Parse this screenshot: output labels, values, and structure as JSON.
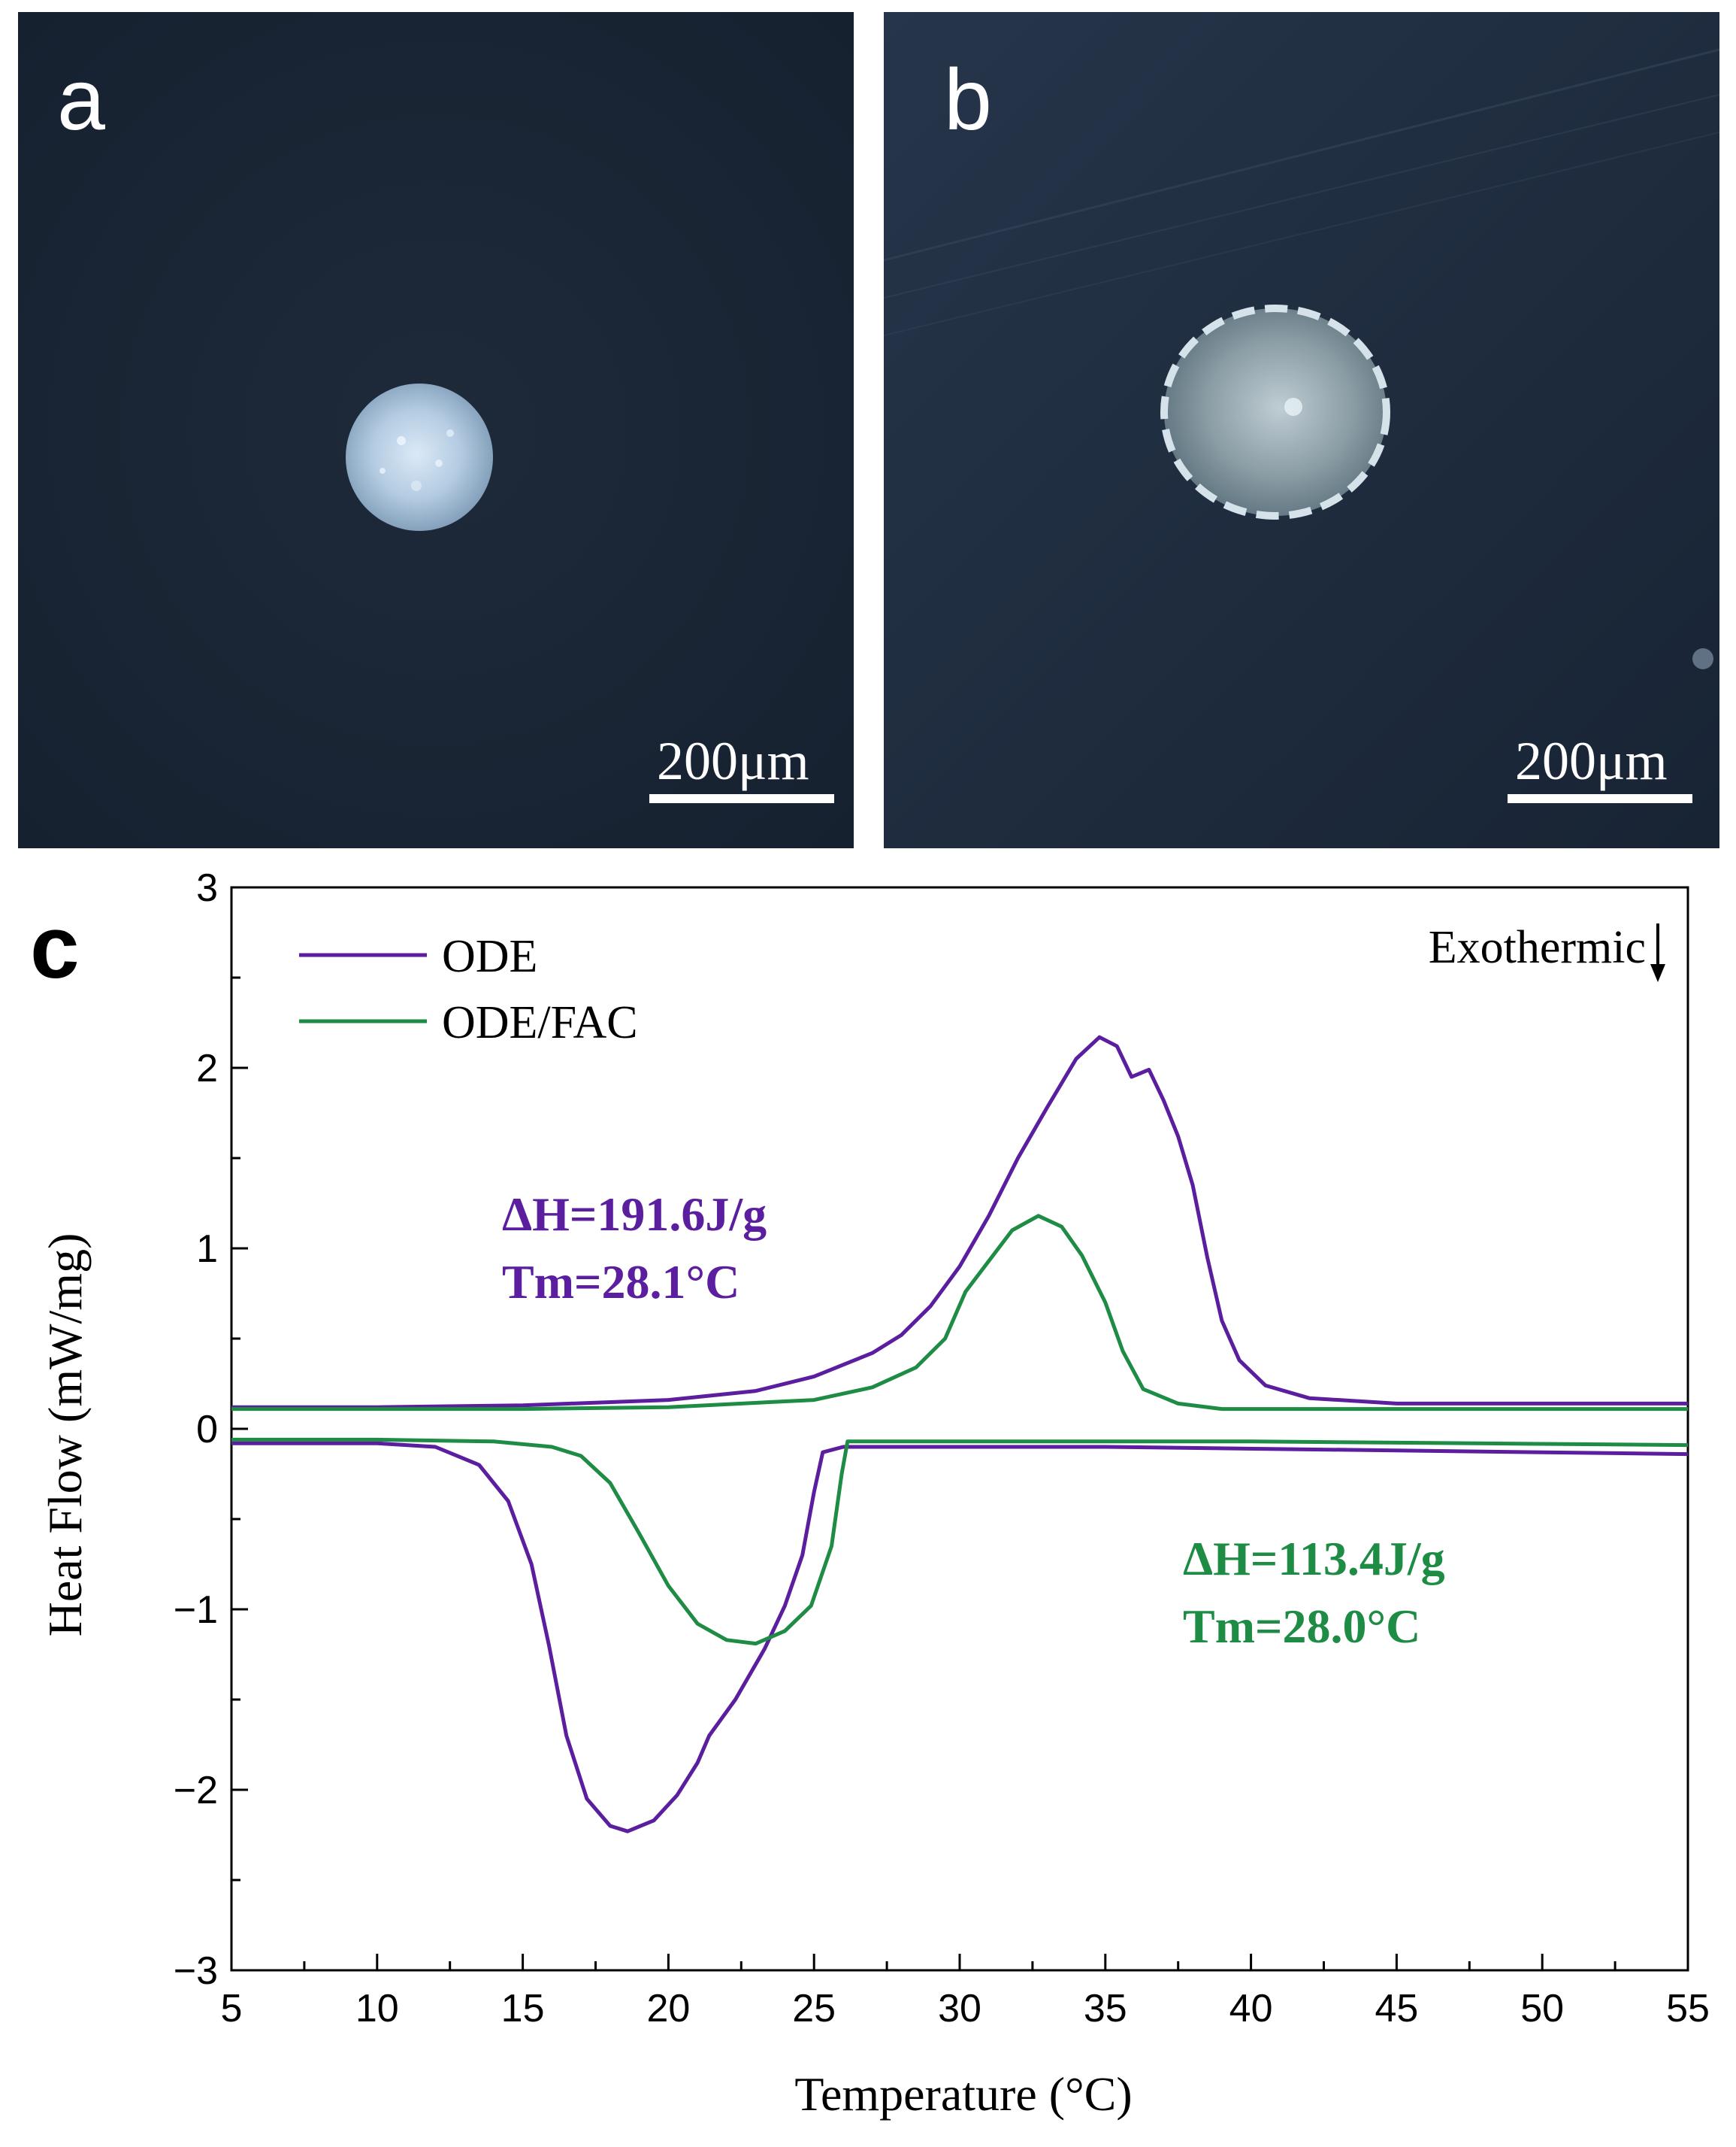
{
  "panel_a": {
    "letter": "a",
    "scale_label": "200μm"
  },
  "panel_b": {
    "letter": "b",
    "scale_label": "200μm"
  },
  "chart_data": {
    "panel_label": "c",
    "type": "line",
    "xlabel": "Temperature (°C)",
    "ylabel": "Heat Flow (mW/mg)",
    "xlim": [
      5,
      55
    ],
    "ylim": [
      -3,
      3
    ],
    "xticks": [
      5,
      10,
      15,
      20,
      25,
      30,
      35,
      40,
      45,
      50,
      55
    ],
    "yticks": [
      3,
      2,
      1,
      0,
      -1,
      -2,
      -3
    ],
    "ytick_labels": [
      "3",
      "2",
      "1",
      "0",
      "−1",
      "−2",
      "−3"
    ],
    "corner_note": "Exothermic",
    "legend": [
      {
        "name": "ODE",
        "color": "#5a1e9e"
      },
      {
        "name": "ODE/FAC",
        "color": "#1f8c45"
      }
    ],
    "annotations": {
      "ode_dh": "ΔH=191.6J/g",
      "ode_tm": "Tm=28.1°C",
      "fac_dh": "ΔH=113.4J/g",
      "fac_tm": "Tm=28.0°C"
    },
    "series": [
      {
        "name": "ODE heating",
        "color": "#5a1e9e",
        "points": [
          [
            5,
            0.12
          ],
          [
            10,
            0.12
          ],
          [
            15,
            0.13
          ],
          [
            20,
            0.16
          ],
          [
            23,
            0.21
          ],
          [
            25,
            0.29
          ],
          [
            27,
            0.42
          ],
          [
            28,
            0.52
          ],
          [
            29,
            0.68
          ],
          [
            30,
            0.9
          ],
          [
            31,
            1.18
          ],
          [
            32,
            1.5
          ],
          [
            33,
            1.78
          ],
          [
            34,
            2.05
          ],
          [
            34.8,
            2.17
          ],
          [
            35.4,
            2.12
          ],
          [
            35.9,
            1.95
          ],
          [
            36.5,
            1.99
          ],
          [
            37,
            1.82
          ],
          [
            37.5,
            1.62
          ],
          [
            38,
            1.35
          ],
          [
            38.5,
            0.95
          ],
          [
            39,
            0.6
          ],
          [
            39.6,
            0.38
          ],
          [
            40.5,
            0.24
          ],
          [
            42,
            0.17
          ],
          [
            45,
            0.14
          ],
          [
            50,
            0.14
          ],
          [
            55,
            0.14
          ]
        ]
      },
      {
        "name": "ODE/FAC heating",
        "color": "#1f8c45",
        "points": [
          [
            5,
            0.11
          ],
          [
            15,
            0.11
          ],
          [
            20,
            0.12
          ],
          [
            25,
            0.16
          ],
          [
            27,
            0.23
          ],
          [
            28.5,
            0.34
          ],
          [
            29.5,
            0.5
          ],
          [
            30.2,
            0.76
          ],
          [
            31,
            0.93
          ],
          [
            31.8,
            1.1
          ],
          [
            32.7,
            1.18
          ],
          [
            33.5,
            1.12
          ],
          [
            34.2,
            0.96
          ],
          [
            35,
            0.7
          ],
          [
            35.6,
            0.43
          ],
          [
            36.3,
            0.22
          ],
          [
            37.5,
            0.14
          ],
          [
            39,
            0.11
          ],
          [
            45,
            0.11
          ],
          [
            55,
            0.11
          ]
        ]
      },
      {
        "name": "ODE cooling",
        "color": "#5a1e9e",
        "points": [
          [
            5,
            -0.08
          ],
          [
            10,
            -0.08
          ],
          [
            12,
            -0.1
          ],
          [
            13.5,
            -0.2
          ],
          [
            14.5,
            -0.4
          ],
          [
            15.3,
            -0.75
          ],
          [
            15.9,
            -1.2
          ],
          [
            16.5,
            -1.7
          ],
          [
            17.2,
            -2.05
          ],
          [
            18,
            -2.2
          ],
          [
            18.6,
            -2.23
          ],
          [
            19.5,
            -2.17
          ],
          [
            20.3,
            -2.03
          ],
          [
            21,
            -1.85
          ],
          [
            21.4,
            -1.7
          ],
          [
            22.3,
            -1.5
          ],
          [
            23.3,
            -1.22
          ],
          [
            24,
            -0.98
          ],
          [
            24.6,
            -0.7
          ],
          [
            25,
            -0.35
          ],
          [
            25.3,
            -0.13
          ],
          [
            26,
            -0.1
          ],
          [
            35,
            -0.1
          ],
          [
            45,
            -0.12
          ],
          [
            55,
            -0.14
          ]
        ]
      },
      {
        "name": "ODE/FAC cooling",
        "color": "#1f8c45",
        "points": [
          [
            5,
            -0.06
          ],
          [
            10,
            -0.06
          ],
          [
            14,
            -0.07
          ],
          [
            16,
            -0.1
          ],
          [
            17,
            -0.15
          ],
          [
            18,
            -0.3
          ],
          [
            19,
            -0.58
          ],
          [
            20,
            -0.87
          ],
          [
            21,
            -1.08
          ],
          [
            22,
            -1.17
          ],
          [
            23,
            -1.19
          ],
          [
            24,
            -1.12
          ],
          [
            24.9,
            -0.98
          ],
          [
            25.6,
            -0.65
          ],
          [
            25.95,
            -0.25
          ],
          [
            26.15,
            -0.07
          ],
          [
            30,
            -0.07
          ],
          [
            40,
            -0.07
          ],
          [
            55,
            -0.09
          ]
        ]
      }
    ]
  }
}
